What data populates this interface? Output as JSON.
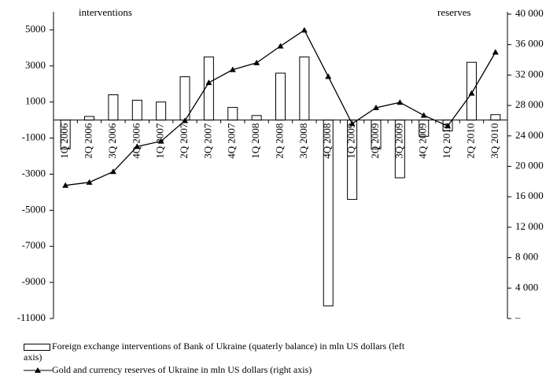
{
  "chart_data": {
    "type": "bar_line",
    "y_axis_title": "interventions",
    "y2_axis_title": "reserves",
    "categories": [
      "1Q 2006",
      "2Q 2006",
      "3Q 2006",
      "4Q 2006",
      "1Q 2007",
      "2Q 2007",
      "3Q 2007",
      "4Q 2007",
      "1Q 2008",
      "2Q 2008",
      "3Q 2008",
      "4Q 2008",
      "1Q 2009",
      "2Q 2009",
      "3Q 2009",
      "4Q 2009",
      "1Q 2010",
      "2Q 2010",
      "3Q 2010"
    ],
    "series": [
      {
        "name": "Foreign exchange interventions of Bank of Ukraine (quaterly balance) in mln US dollars (left axis)",
        "type": "bar",
        "color": "#ffffff",
        "values": [
          -1600,
          200,
          1400,
          1100,
          1000,
          2400,
          3500,
          700,
          250,
          2600,
          3500,
          -10300,
          -4400,
          -1600,
          -3200,
          -900,
          -600,
          3200,
          300
        ]
      },
      {
        "name": "Gold and currency reserves of Ukraine in mln US dollars (right axis)",
        "type": "line",
        "axis": "y2",
        "color": "#000000",
        "values": [
          17500,
          17900,
          19300,
          22600,
          23300,
          26000,
          31000,
          32700,
          33600,
          35800,
          37900,
          31800,
          25600,
          27700,
          28400,
          26700,
          25300,
          29600,
          35000
        ]
      }
    ],
    "ylim": [
      -11000,
      6000
    ],
    "yticks": [
      5000,
      3000,
      1000,
      -1000,
      -3000,
      -5000,
      -7000,
      -9000,
      -11000
    ],
    "y2lim": [
      0,
      40000
    ],
    "y2ticks": [
      {
        "value": 40000,
        "label": "40 000"
      },
      {
        "value": 36000,
        "label": "36 000"
      },
      {
        "value": 32000,
        "label": "32 000"
      },
      {
        "value": 28000,
        "label": "28 000"
      },
      {
        "value": 24000,
        "label": "24 000"
      },
      {
        "value": 20000,
        "label": "20 000"
      },
      {
        "value": 16000,
        "label": "16 000"
      },
      {
        "value": 12000,
        "label": "12 000"
      },
      {
        "value": 8000,
        "label": "8 000"
      },
      {
        "value": 4000,
        "label": "4 000"
      },
      {
        "value": 0,
        "label": "–"
      }
    ]
  }
}
